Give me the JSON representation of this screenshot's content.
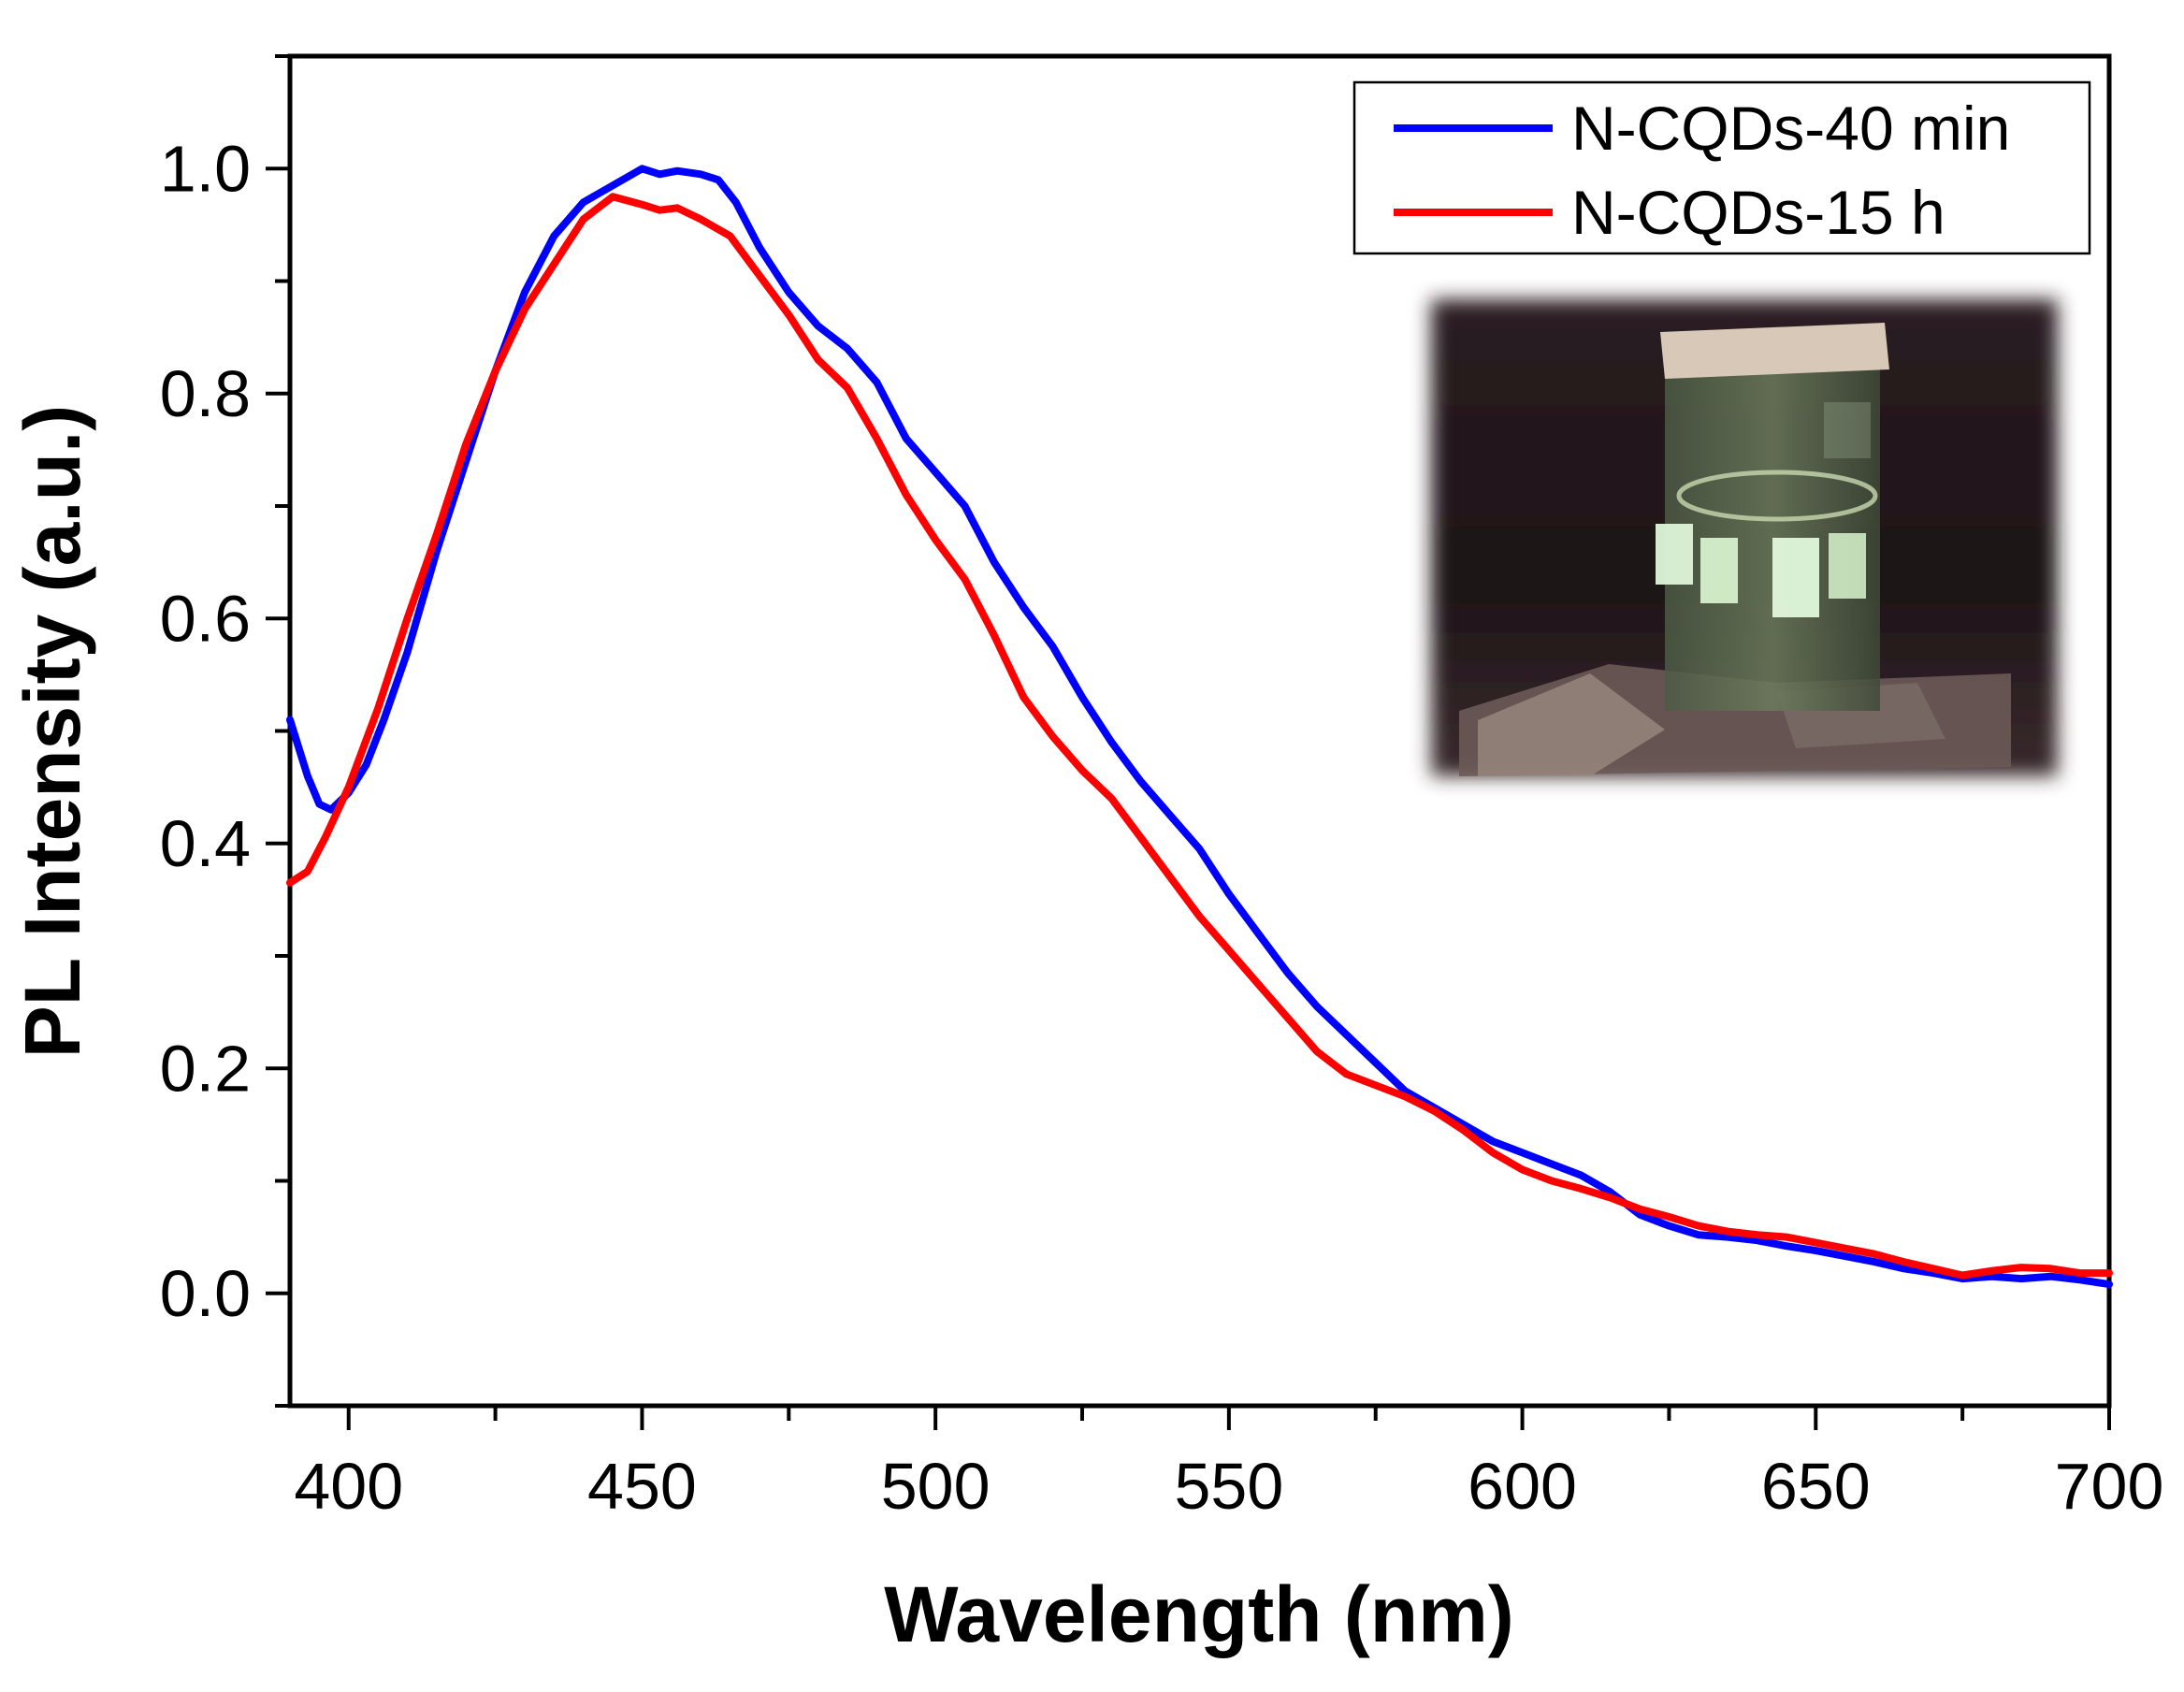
{
  "chart_data": {
    "type": "line",
    "title": "",
    "xlabel": "Wavelength (nm)",
    "ylabel": "PL Intensity (a.u.)",
    "xlim": [
      390,
      700
    ],
    "ylim": [
      -0.1,
      1.1
    ],
    "xticks": [
      400,
      450,
      500,
      550,
      600,
      650,
      700
    ],
    "xtick_labels": [
      "400",
      "450",
      "500",
      "550",
      "600",
      "650",
      "700"
    ],
    "yticks": [
      0.0,
      0.2,
      0.4,
      0.6,
      0.8,
      1.0
    ],
    "ytick_labels": [
      "0.0",
      "0.2",
      "0.4",
      "0.6",
      "0.8",
      "1.0"
    ],
    "grid": false,
    "legend_position": "top-right",
    "series": [
      {
        "name": "N-CQDs-40 min",
        "color": "#0000ff",
        "points": [
          [
            390,
            0.51
          ],
          [
            393,
            0.46
          ],
          [
            395,
            0.435
          ],
          [
            397,
            0.43
          ],
          [
            400,
            0.445
          ],
          [
            403,
            0.47
          ],
          [
            406,
            0.51
          ],
          [
            410,
            0.57
          ],
          [
            415,
            0.66
          ],
          [
            420,
            0.74
          ],
          [
            425,
            0.82
          ],
          [
            430,
            0.89
          ],
          [
            435,
            0.94
          ],
          [
            440,
            0.97
          ],
          [
            445,
            0.985
          ],
          [
            450,
            1.0
          ],
          [
            453,
            0.995
          ],
          [
            456,
            0.998
          ],
          [
            460,
            0.995
          ],
          [
            463,
            0.99
          ],
          [
            466,
            0.97
          ],
          [
            470,
            0.93
          ],
          [
            475,
            0.89
          ],
          [
            480,
            0.86
          ],
          [
            485,
            0.84
          ],
          [
            490,
            0.81
          ],
          [
            495,
            0.76
          ],
          [
            500,
            0.73
          ],
          [
            505,
            0.7
          ],
          [
            510,
            0.65
          ],
          [
            515,
            0.61
          ],
          [
            520,
            0.575
          ],
          [
            525,
            0.53
          ],
          [
            530,
            0.49
          ],
          [
            535,
            0.455
          ],
          [
            540,
            0.425
          ],
          [
            545,
            0.395
          ],
          [
            550,
            0.355
          ],
          [
            555,
            0.32
          ],
          [
            560,
            0.285
          ],
          [
            565,
            0.255
          ],
          [
            570,
            0.23
          ],
          [
            575,
            0.205
          ],
          [
            580,
            0.18
          ],
          [
            585,
            0.165
          ],
          [
            590,
            0.15
          ],
          [
            595,
            0.135
          ],
          [
            600,
            0.125
          ],
          [
            605,
            0.115
          ],
          [
            610,
            0.105
          ],
          [
            615,
            0.09
          ],
          [
            620,
            0.07
          ],
          [
            625,
            0.06
          ],
          [
            630,
            0.052
          ],
          [
            635,
            0.05
          ],
          [
            640,
            0.047
          ],
          [
            645,
            0.042
          ],
          [
            650,
            0.038
          ],
          [
            655,
            0.033
          ],
          [
            660,
            0.028
          ],
          [
            665,
            0.022
          ],
          [
            670,
            0.018
          ],
          [
            675,
            0.013
          ],
          [
            680,
            0.015
          ],
          [
            685,
            0.013
          ],
          [
            690,
            0.015
          ],
          [
            695,
            0.012
          ],
          [
            700,
            0.008
          ]
        ]
      },
      {
        "name": "N-CQDs-15 h",
        "color": "#ff0000",
        "points": [
          [
            390,
            0.365
          ],
          [
            393,
            0.375
          ],
          [
            396,
            0.405
          ],
          [
            400,
            0.45
          ],
          [
            405,
            0.52
          ],
          [
            410,
            0.6
          ],
          [
            415,
            0.675
          ],
          [
            420,
            0.755
          ],
          [
            425,
            0.82
          ],
          [
            430,
            0.875
          ],
          [
            435,
            0.915
          ],
          [
            440,
            0.955
          ],
          [
            445,
            0.975
          ],
          [
            450,
            0.968
          ],
          [
            453,
            0.963
          ],
          [
            456,
            0.965
          ],
          [
            460,
            0.955
          ],
          [
            465,
            0.94
          ],
          [
            470,
            0.905
          ],
          [
            475,
            0.87
          ],
          [
            480,
            0.83
          ],
          [
            485,
            0.805
          ],
          [
            490,
            0.76
          ],
          [
            495,
            0.71
          ],
          [
            500,
            0.67
          ],
          [
            505,
            0.635
          ],
          [
            510,
            0.585
          ],
          [
            515,
            0.53
          ],
          [
            520,
            0.495
          ],
          [
            525,
            0.465
          ],
          [
            530,
            0.44
          ],
          [
            535,
            0.405
          ],
          [
            540,
            0.37
          ],
          [
            545,
            0.335
          ],
          [
            550,
            0.305
          ],
          [
            555,
            0.275
          ],
          [
            560,
            0.245
          ],
          [
            565,
            0.215
          ],
          [
            570,
            0.195
          ],
          [
            575,
            0.185
          ],
          [
            580,
            0.175
          ],
          [
            585,
            0.162
          ],
          [
            590,
            0.145
          ],
          [
            595,
            0.125
          ],
          [
            600,
            0.11
          ],
          [
            605,
            0.1
          ],
          [
            610,
            0.093
          ],
          [
            615,
            0.085
          ],
          [
            620,
            0.075
          ],
          [
            625,
            0.068
          ],
          [
            630,
            0.06
          ],
          [
            635,
            0.055
          ],
          [
            640,
            0.052
          ],
          [
            645,
            0.05
          ],
          [
            650,
            0.045
          ],
          [
            655,
            0.04
          ],
          [
            660,
            0.035
          ],
          [
            665,
            0.028
          ],
          [
            670,
            0.022
          ],
          [
            675,
            0.016
          ],
          [
            680,
            0.02
          ],
          [
            685,
            0.023
          ],
          [
            690,
            0.022
          ],
          [
            695,
            0.018
          ],
          [
            700,
            0.018
          ]
        ]
      }
    ]
  }
}
